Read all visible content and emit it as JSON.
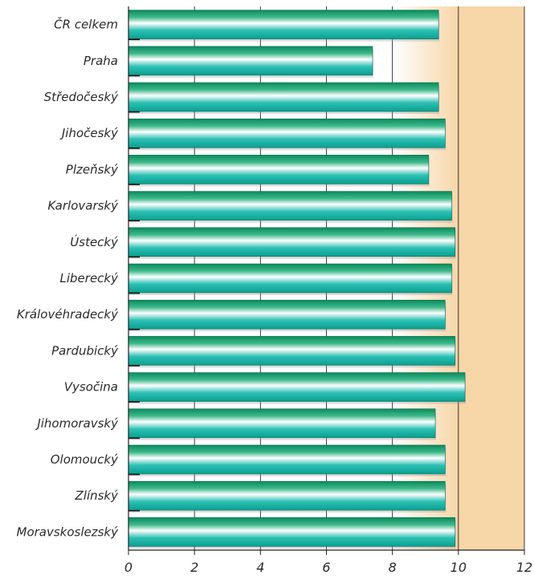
{
  "chart_data": {
    "type": "bar",
    "orientation": "horizontal",
    "categories": [
      "ČR celkem",
      "Praha",
      "Středočeský",
      "Jihočeský",
      "Plzeňský",
      "Karlovarský",
      "Ústecký",
      "Liberecký",
      "Královéhradecký",
      "Pardubický",
      "Vysočina",
      "Jihomoravský",
      "Olomoucký",
      "Zlínský",
      "Moravskoslezský"
    ],
    "values": [
      9.4,
      7.4,
      9.4,
      9.6,
      9.1,
      9.8,
      9.9,
      9.8,
      9.6,
      9.9,
      10.2,
      9.3,
      9.6,
      9.6,
      9.9
    ],
    "xlim": [
      0,
      12
    ],
    "xticks": [
      "0",
      "2",
      "4",
      "6",
      "8",
      "10",
      "12"
    ],
    "grid": "vertical",
    "highlight_band": [
      10,
      12
    ],
    "colors": {
      "bar_dark": "#0a8a5a",
      "bar_mid": "#1aa88a",
      "bar_light": "#ffffff",
      "bar_teal": "#12b0a6",
      "band": "#f7d6a8",
      "band_fade": "#fdf1e0",
      "axis": "#222222"
    }
  }
}
